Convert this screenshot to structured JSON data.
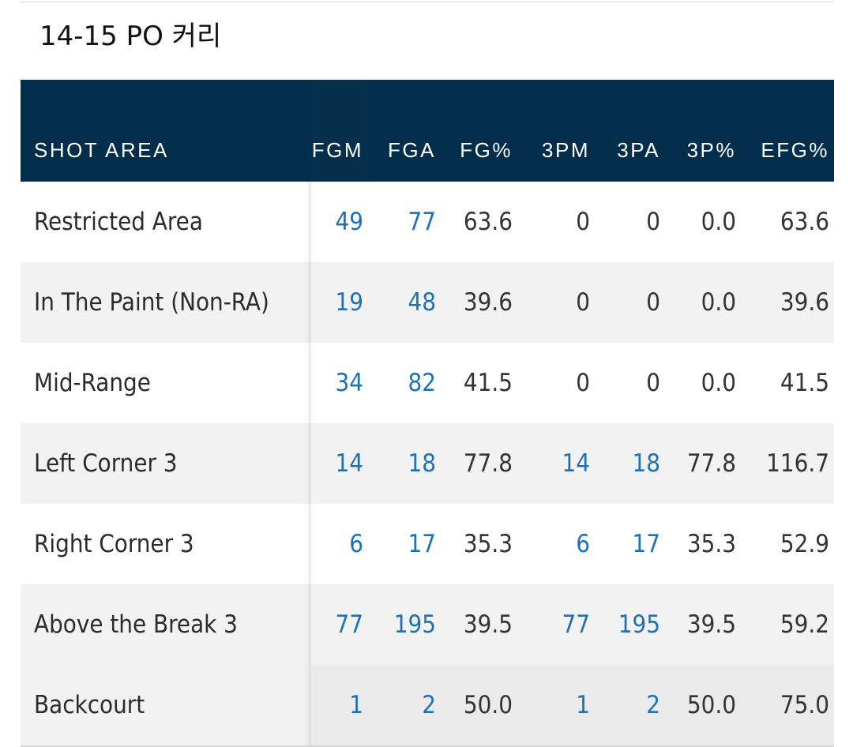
{
  "title": "14-15 PO 커리",
  "table": {
    "headers": [
      "SHOT AREA",
      "FGM",
      "FGA",
      "FG%",
      "3PM",
      "3PA",
      "3P%",
      "EFG%"
    ],
    "rows": [
      {
        "area": "Restricted Area",
        "fgm": "49",
        "fga": "77",
        "fgp": "63.6",
        "tpm": "0",
        "tpa": "0",
        "tpp": "0.0",
        "efg": "63.6"
      },
      {
        "area": "In The Paint (Non-RA)",
        "fgm": "19",
        "fga": "48",
        "fgp": "39.6",
        "tpm": "0",
        "tpa": "0",
        "tpp": "0.0",
        "efg": "39.6"
      },
      {
        "area": "Mid-Range",
        "fgm": "34",
        "fga": "82",
        "fgp": "41.5",
        "tpm": "0",
        "tpa": "0",
        "tpp": "0.0",
        "efg": "41.5"
      },
      {
        "area": "Left Corner 3",
        "fgm": "14",
        "fga": "18",
        "fgp": "77.8",
        "tpm": "14",
        "tpa": "18",
        "tpp": "77.8",
        "efg": "116.7"
      },
      {
        "area": "Right Corner 3",
        "fgm": "6",
        "fga": "17",
        "fgp": "35.3",
        "tpm": "6",
        "tpa": "17",
        "tpp": "35.3",
        "efg": "52.9"
      },
      {
        "area": "Above the Break 3",
        "fgm": "77",
        "fga": "195",
        "fgp": "39.5",
        "tpm": "77",
        "tpa": "195",
        "tpp": "39.5",
        "efg": "59.2"
      },
      {
        "area": "Backcourt",
        "fgm": "1",
        "fga": "2",
        "fgp": "50.0",
        "tpm": "1",
        "tpa": "2",
        "tpp": "50.0",
        "efg": "75.0"
      }
    ]
  },
  "colors": {
    "header_bg": "#022e4c",
    "link": "#1d71b8",
    "row_alt": "#f2f2f2"
  }
}
